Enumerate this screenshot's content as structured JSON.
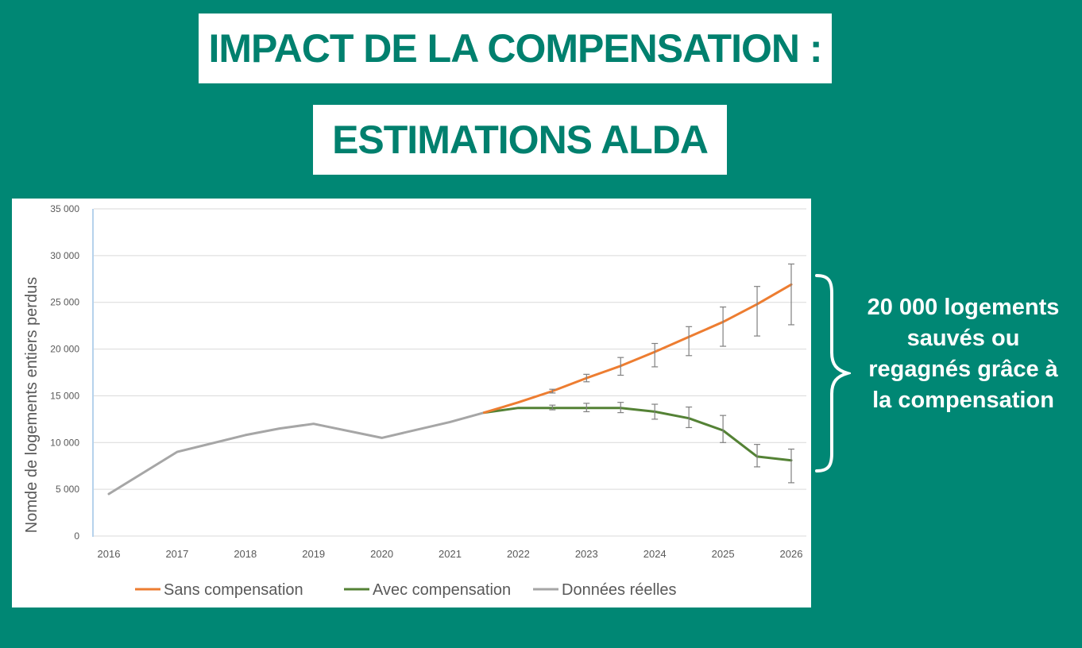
{
  "header": {
    "title_line1": "IMPACT DE LA COMPENSATION :",
    "title_line2": "ESTIMATIONS ALDA"
  },
  "annotation": {
    "lines": [
      "20 000 logements",
      "sauvés ou",
      "regagnés grâce à",
      "la compensation"
    ]
  },
  "colors": {
    "background": "#008774",
    "title_text": "#00806e",
    "sans": "#ed7d31",
    "avec": "#548235",
    "reelles": "#a6a6a6",
    "error_bar": "#808080",
    "grid": "#d9d9d9"
  },
  "chart_data": {
    "type": "line",
    "title": "",
    "xlabel": "",
    "ylabel": "Nomde de logements entiers perdus",
    "xlim": [
      2016,
      2026
    ],
    "ylim": [
      0,
      35000
    ],
    "yticks": [
      0,
      5000,
      10000,
      15000,
      20000,
      25000,
      30000,
      35000
    ],
    "ytick_labels": [
      "0",
      "5 000",
      "10 000",
      "15 000",
      "20 000",
      "25 000",
      "30 000",
      "35 000"
    ],
    "xticks": [
      2016,
      2017,
      2018,
      2019,
      2020,
      2021,
      2022,
      2023,
      2024,
      2025,
      2026
    ],
    "xtick_labels": [
      "2016",
      "2017",
      "2018",
      "2019",
      "2020",
      "2021",
      "2022",
      "2023",
      "2024",
      "2025",
      "2026"
    ],
    "grid": true,
    "legend_position": "bottom",
    "series": [
      {
        "key": "sans",
        "name": "Sans compensation",
        "color": "#ed7d31",
        "x": [
          2021.5,
          2022,
          2022.5,
          2023,
          2023.5,
          2024,
          2024.5,
          2025,
          2025.5,
          2026
        ],
        "y": [
          13200,
          14300,
          15500,
          16900,
          18200,
          19700,
          21300,
          22900,
          24800,
          26900
        ],
        "err_low": [
          null,
          null,
          15300,
          16500,
          17200,
          18100,
          19300,
          20300,
          21400,
          22600
        ],
        "err_high": [
          null,
          null,
          15700,
          17300,
          19100,
          20600,
          22400,
          24500,
          26700,
          29100
        ]
      },
      {
        "key": "avec",
        "name": "Avec compensation",
        "color": "#548235",
        "x": [
          2021.5,
          2022,
          2022.5,
          2023,
          2023.5,
          2024,
          2024.5,
          2025,
          2025.5,
          2026
        ],
        "y": [
          13200,
          13700,
          13700,
          13700,
          13700,
          13300,
          12600,
          11300,
          8500,
          8100
        ],
        "err_low": [
          null,
          null,
          13500,
          13300,
          13200,
          12500,
          11600,
          10000,
          7400,
          5700
        ],
        "err_high": [
          null,
          null,
          14000,
          14200,
          14300,
          14100,
          13800,
          12900,
          9800,
          9300
        ]
      },
      {
        "key": "reelles",
        "name": "Données réelles",
        "color": "#a6a6a6",
        "x": [
          2016,
          2017,
          2018,
          2018.5,
          2019,
          2020,
          2021,
          2021.5
        ],
        "y": [
          4500,
          9000,
          10800,
          11500,
          12000,
          10500,
          12200,
          13200
        ]
      }
    ]
  }
}
